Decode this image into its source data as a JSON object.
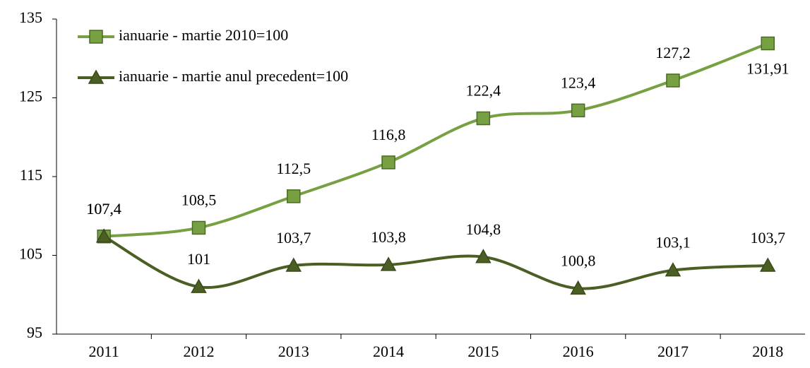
{
  "chart_data": {
    "type": "line",
    "categories": [
      "2011",
      "2012",
      "2013",
      "2014",
      "2015",
      "2016",
      "2017",
      "2018"
    ],
    "series": [
      {
        "name": "ianuarie - martie 2010=100",
        "color": "#77a043",
        "marker": "square",
        "values": [
          107.4,
          108.5,
          112.5,
          116.8,
          122.4,
          123.4,
          127.2,
          131.91
        ],
        "value_labels": [
          "107,4",
          "108,5",
          "112,5",
          "116,8",
          "122,4",
          "123,4",
          "127,2",
          "131,91"
        ]
      },
      {
        "name": "ianuarie - martie anul precedent=100",
        "color": "#4b5f24",
        "marker": "triangle",
        "values": [
          107.4,
          101,
          103.7,
          103.8,
          104.8,
          100.8,
          103.1,
          103.7
        ],
        "value_labels": [
          "107,4",
          "101",
          "103,7",
          "103,8",
          "104,8",
          "100,8",
          "103,1",
          "103,7"
        ]
      }
    ],
    "ylim": [
      95,
      135
    ],
    "yticks": [
      95,
      105,
      115,
      125,
      135
    ],
    "grid": false,
    "legend": "upper left"
  }
}
